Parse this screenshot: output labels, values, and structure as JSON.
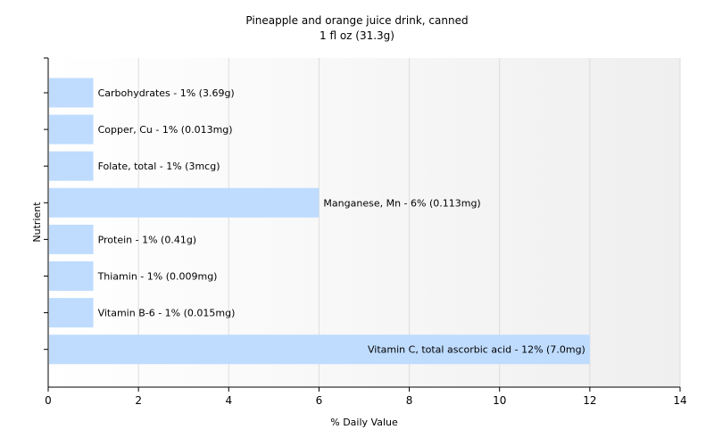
{
  "chart_data": {
    "type": "bar",
    "orientation": "horizontal",
    "title": "Pineapple and orange juice drink, canned",
    "subtitle": "1 fl oz (31.3g)",
    "xlabel": "% Daily Value",
    "ylabel": "Nutrient",
    "xlim": [
      0,
      14
    ],
    "xticks": [
      0,
      2,
      4,
      6,
      8,
      10,
      12,
      14
    ],
    "grid": "vertical",
    "bar_color": "#bfdcff",
    "categories": [
      "Carbohydrates",
      "Copper, Cu",
      "Folate, total",
      "Manganese, Mn",
      "Protein",
      "Thiamin",
      "Vitamin B-6",
      "Vitamin C, total ascorbic acid"
    ],
    "values": [
      1,
      1,
      1,
      6,
      1,
      1,
      1,
      12
    ],
    "labels": [
      "Carbohydrates - 1% (3.69g)",
      "Copper, Cu - 1% (0.013mg)",
      "Folate, total - 1% (3mcg)",
      "Manganese, Mn - 6% (0.113mg)",
      "Protein - 1% (0.41g)",
      "Thiamin - 1% (0.009mg)",
      "Vitamin B-6 - 1% (0.015mg)",
      "Vitamin C, total ascorbic acid - 12% (7.0mg)"
    ]
  }
}
